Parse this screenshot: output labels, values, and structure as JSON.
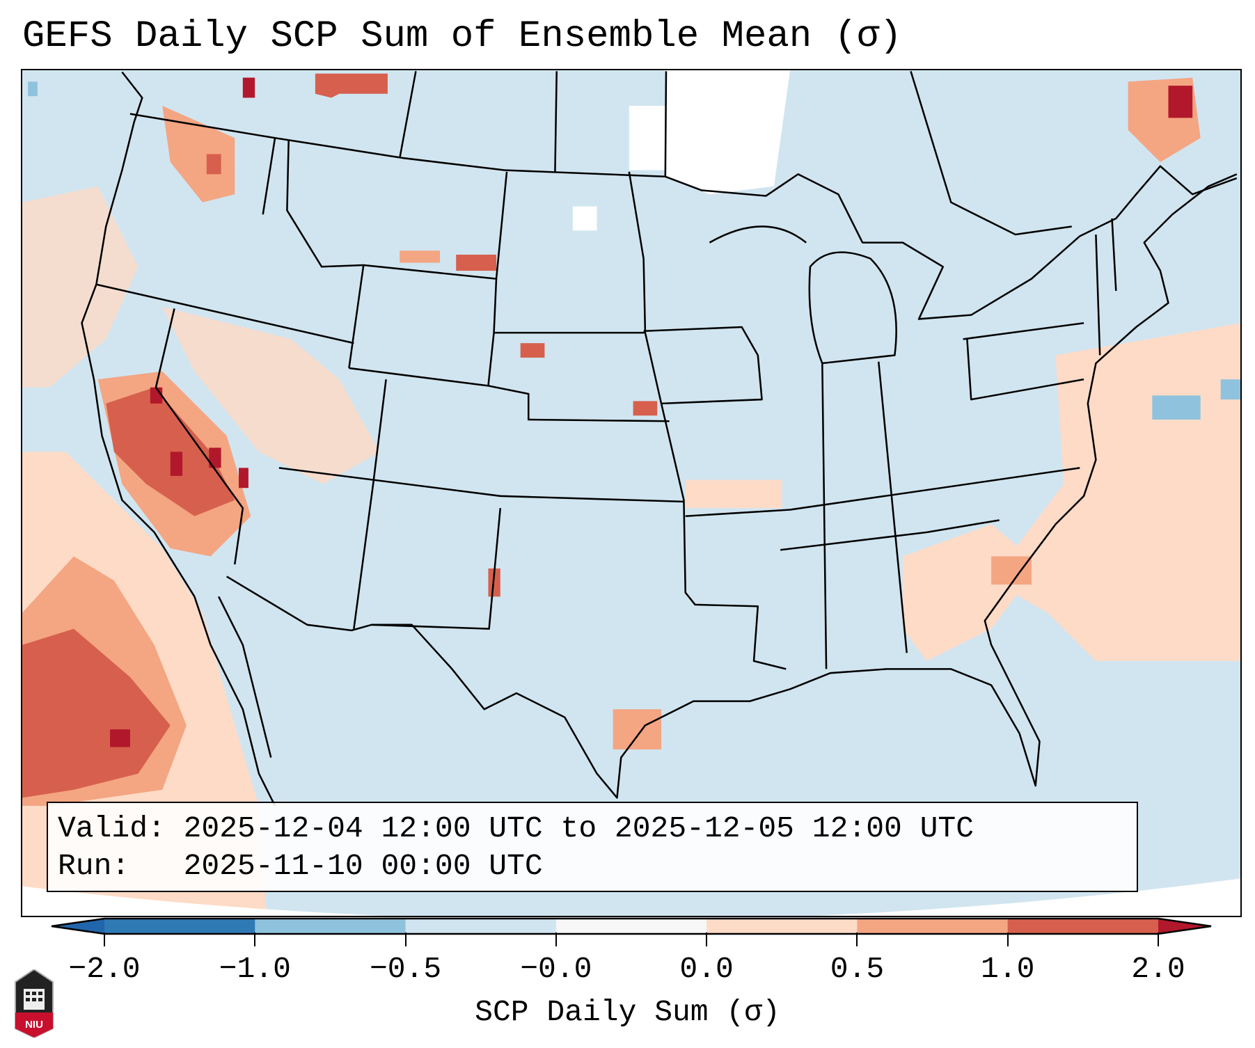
{
  "title": "GEFS Daily SCP Sum of Ensemble Mean (σ)",
  "info_box": {
    "valid_line": "Valid: 2025-12-04 12:00 UTC to 2025-12-05 12:00 UTC",
    "run_line": "Run:   2025-11-10 00:00 UTC"
  },
  "colorbar": {
    "label": "SCP Daily Sum (σ)",
    "ticks": [
      "−2.0",
      "−1.0",
      "−0.5",
      "−0.0",
      "0.0",
      "0.5",
      "1.0",
      "2.0"
    ],
    "colors": [
      "#2f79b5",
      "#8fc3dd",
      "#d1e5f0",
      "#f7f7f7",
      "#fddbc7",
      "#f4a582",
      "#d6604d"
    ],
    "under_color": "#2166ac",
    "over_color": "#b2182b"
  },
  "logo": {
    "text": "NIU"
  }
}
